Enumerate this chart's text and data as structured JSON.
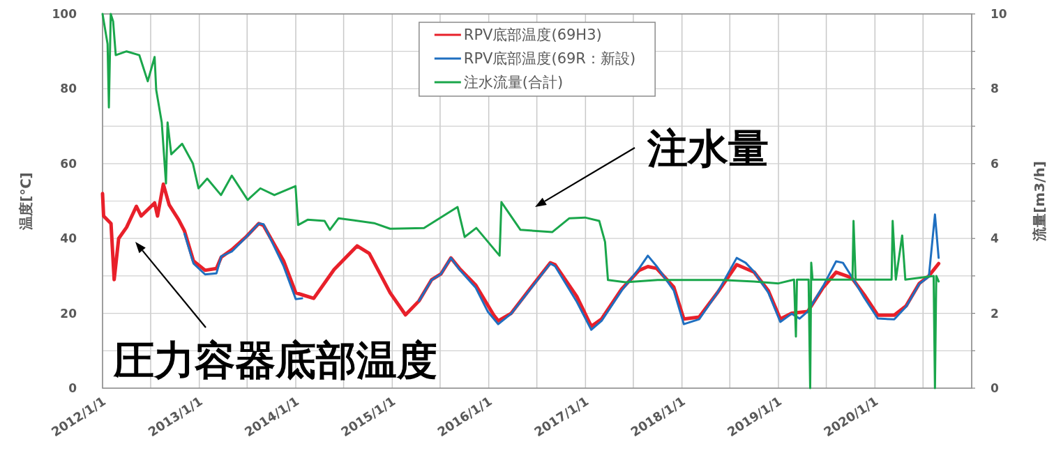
{
  "chart_data": {
    "type": "line",
    "ylabel": "温度[℃]",
    "y2label": "流量[m3/h]",
    "xlim": [
      "2012-01-01",
      "2021-01-01"
    ],
    "xticks": [
      {
        "value": "2012-01-01",
        "label": "2012/1/1"
      },
      {
        "value": "2012-07-01",
        "label": null
      },
      {
        "value": "2013-01-01",
        "label": "2013/1/1"
      },
      {
        "value": "2013-07-01",
        "label": null
      },
      {
        "value": "2014-01-01",
        "label": "2014/1/1"
      },
      {
        "value": "2014-07-01",
        "label": null
      },
      {
        "value": "2015-01-01",
        "label": "2015/1/1"
      },
      {
        "value": "2015-07-01",
        "label": null
      },
      {
        "value": "2016-01-01",
        "label": "2016/1/1"
      },
      {
        "value": "2016-07-01",
        "label": null
      },
      {
        "value": "2017-01-01",
        "label": "2017/1/1"
      },
      {
        "value": "2017-07-01",
        "label": null
      },
      {
        "value": "2018-01-01",
        "label": "2018/1/1"
      },
      {
        "value": "2018-07-01",
        "label": null
      },
      {
        "value": "2019-01-01",
        "label": "2019/1/1"
      },
      {
        "value": "2019-07-01",
        "label": null
      },
      {
        "value": "2020-01-01",
        "label": "2020/1/1"
      },
      {
        "value": "2020-07-01",
        "label": null
      },
      {
        "value": "2021-01-01",
        "label": null
      }
    ],
    "ylim": [
      0,
      100
    ],
    "yticks": [
      0,
      {
        "value": 10,
        "label": null
      },
      20,
      {
        "value": 30,
        "label": null
      },
      40,
      {
        "value": 50,
        "label": null
      },
      60,
      {
        "value": 70,
        "label": null
      },
      80,
      {
        "value": 90,
        "label": null
      },
      100
    ],
    "y2lim": [
      0,
      10
    ],
    "y2ticks": [
      0,
      {
        "value": 1,
        "label": null
      },
      2,
      {
        "value": 3,
        "label": null
      },
      4,
      {
        "value": 5,
        "label": null
      },
      6,
      {
        "value": 7,
        "label": null
      },
      8,
      {
        "value": 9,
        "label": null
      },
      10
    ],
    "grid": true,
    "legend": "top",
    "series": [
      {
        "name": "RPV底部温度(69H3)",
        "color": "#e8202a",
        "x": [
          "2012-01-01",
          "2012-01-05",
          "2012-02-02",
          "2012-02-14",
          "2012-03-02",
          "2012-04-01",
          "2012-05-08",
          "2012-05-26",
          "2012-07-16",
          "2012-07-27",
          "2012-08-18",
          "2012-09-09",
          "2012-10-15",
          "2012-11-06",
          "2012-12-10",
          "2013-01-23",
          "2013-03-07",
          "2013-03-25",
          "2013-05-04",
          "2013-06-28",
          "2013-08-14",
          "2013-09-01",
          "2013-11-16",
          "2014-01-01",
          "2014-01-23",
          "2014-03-10",
          "2014-05-26",
          "2014-08-21",
          "2014-10-06",
          "2014-12-24",
          "2015-02-20",
          "2015-04-12",
          "2015-05-30",
          "2015-07-04",
          "2015-08-11",
          "2015-09-12",
          "2015-11-13",
          "2016-01-20",
          "2016-02-06",
          "2016-03-26",
          "2016-06-10",
          "2016-08-21",
          "2016-09-08",
          "2016-11-29",
          "2017-01-23",
          "2017-03-03",
          "2017-05-18",
          "2017-07-23",
          "2017-08-25",
          "2017-09-27",
          "2017-12-01",
          "2018-01-08",
          "2018-03-07",
          "2018-05-15",
          "2018-07-27",
          "2018-10-01",
          "2018-11-24",
          "2019-01-08",
          "2019-02-20",
          "2019-04-22",
          "2019-06-20",
          "2019-08-07",
          "2019-10-05",
          "2019-11-21",
          "2020-01-12",
          "2020-03-14",
          "2020-04-28",
          "2020-06-17",
          "2020-07-23",
          "2020-08-29"
        ],
        "values": [
          52,
          46,
          44,
          29,
          40,
          43,
          48.6,
          46,
          49.5,
          46,
          54.5,
          49,
          45,
          42,
          34,
          31.5,
          32,
          35,
          37,
          40.5,
          44,
          43.5,
          34,
          25.5,
          25,
          24,
          31.7,
          38,
          36,
          25.5,
          19.6,
          23.3,
          29,
          30.5,
          34.8,
          32,
          27.5,
          19.5,
          18,
          20,
          27,
          33.5,
          33,
          24.5,
          16.5,
          18.5,
          26.5,
          31.5,
          32.5,
          32,
          27,
          18.5,
          19,
          25.5,
          33,
          31,
          26,
          18.5,
          20,
          20.5,
          27,
          31,
          29.5,
          25,
          19.5,
          19.5,
          22,
          28,
          30,
          33.3
        ]
      },
      {
        "name": "RPV底部温度(69R：新設)",
        "color": "#1f6fc0",
        "x": [
          "2012-11-06",
          "2012-12-10",
          "2013-01-23",
          "2013-03-07",
          "2013-03-25",
          "2013-05-04",
          "2013-06-28",
          "2013-08-14",
          "2013-09-01",
          "2013-11-16",
          "2014-01-01",
          "2014-01-25",
          "2014-06-01",
          "2015-04-12",
          "2015-05-30",
          "2015-07-04",
          "2015-08-11",
          "2015-09-12",
          "2015-11-13",
          "2015-12-28",
          "2016-02-06",
          "2016-03-26",
          "2016-06-10",
          "2016-08-21",
          "2016-09-08",
          "2016-11-29",
          "2017-01-23",
          "2017-03-03",
          "2017-05-18",
          "2017-07-23",
          "2017-08-25",
          "2017-09-27",
          "2017-12-01",
          "2018-01-08",
          "2018-03-07",
          "2018-05-15",
          "2018-07-27",
          "2018-08-30",
          "2018-10-01",
          "2018-11-24",
          "2019-01-08",
          "2019-02-20",
          "2019-03-22",
          "2019-04-22",
          "2019-06-20",
          "2019-08-07",
          "2019-09-02",
          "2019-10-05",
          "2019-11-21",
          "2020-01-12",
          "2020-03-14",
          "2020-04-28",
          "2020-06-17",
          "2020-07-23",
          "2020-08-15",
          "2020-08-29"
        ],
        "values": [
          41.3,
          33.3,
          30.4,
          30.7,
          35.2,
          36.5,
          40.4,
          44,
          43.8,
          32.6,
          23.8,
          24,
          null,
          23.3,
          28.9,
          30.5,
          34.8,
          31.7,
          26.8,
          20.5,
          17.1,
          19.9,
          26.8,
          33.3,
          32.6,
          23.1,
          15.6,
          18,
          26.1,
          32,
          35.4,
          32.6,
          26.1,
          17.1,
          18.4,
          25.5,
          34.8,
          33.5,
          31.1,
          25.5,
          17.7,
          19.9,
          18.6,
          20.5,
          27.4,
          33.9,
          33.5,
          29.8,
          24.2,
          18.6,
          18.4,
          21.8,
          27.9,
          29.8,
          46.4,
          34.8
        ]
      },
      {
        "name": "注水流量(合計)",
        "color": "#1aa64b",
        "axis": "y2",
        "x": [
          "2012-01-01",
          "2012-01-20",
          "2012-01-25",
          "2012-02-01",
          "2012-02-10",
          "2012-02-20",
          "2012-04-01",
          "2012-05-19",
          "2012-06-20",
          "2012-07-16",
          "2012-07-22",
          "2012-08-12",
          "2012-08-28",
          "2012-09-03",
          "2012-09-17",
          "2012-10-28",
          "2012-12-08",
          "2012-12-29",
          "2013-01-31",
          "2013-03-24",
          "2013-05-04",
          "2013-07-03",
          "2013-08-20",
          "2013-10-12",
          "2013-12-12",
          "2013-12-31",
          "2014-01-10",
          "2014-02-15",
          "2014-04-20",
          "2014-05-10",
          "2014-06-12",
          "2014-10-24",
          "2014-12-24",
          "2015-05-01",
          "2015-09-05",
          "2015-10-02",
          "2015-11-15",
          "2016-02-11",
          "2016-02-18",
          "2016-04-30",
          "2016-08-28",
          "2016-11-01",
          "2016-12-30",
          "2017-02-22",
          "2017-03-16",
          "2017-03-27",
          "2017-06-01",
          "2017-10-01",
          "2018-06-01",
          "2018-10-01",
          "2019-01-01",
          "2019-03-01",
          "2019-03-08",
          "2019-03-12",
          "2019-04-25",
          "2019-05-01",
          "2019-05-05",
          "2019-05-10",
          "2019-10-08",
          "2019-10-12",
          "2019-10-20",
          "2020-03-04",
          "2020-03-08",
          "2020-03-20",
          "2020-04-13",
          "2020-04-25",
          "2020-08-10",
          "2020-08-15",
          "2020-08-20",
          "2020-08-29"
        ],
        "values": [
          10,
          9.2,
          7.5,
          10,
          9.8,
          8.9,
          9.0,
          8.9,
          8.2,
          8.85,
          7.97,
          7.1,
          5.47,
          7.1,
          6.25,
          6.53,
          6.0,
          5.34,
          5.6,
          5.16,
          5.68,
          5.03,
          5.34,
          5.16,
          5.34,
          5.4,
          4.36,
          4.5,
          4.47,
          4.23,
          4.54,
          4.41,
          4.26,
          4.28,
          4.84,
          4.04,
          4.28,
          3.54,
          4.97,
          4.23,
          4.17,
          4.54,
          4.56,
          4.47,
          3.91,
          2.89,
          2.83,
          2.89,
          2.89,
          2.85,
          2.8,
          2.9,
          1.38,
          2.9,
          2.9,
          0,
          3.35,
          2.9,
          2.9,
          4.47,
          2.9,
          2.9,
          4.47,
          2.9,
          4.08,
          2.9,
          3.0,
          0,
          3.0,
          2.85
        ]
      }
    ],
    "annotations": [
      "圧力容器底部温度",
      "注水量"
    ]
  }
}
